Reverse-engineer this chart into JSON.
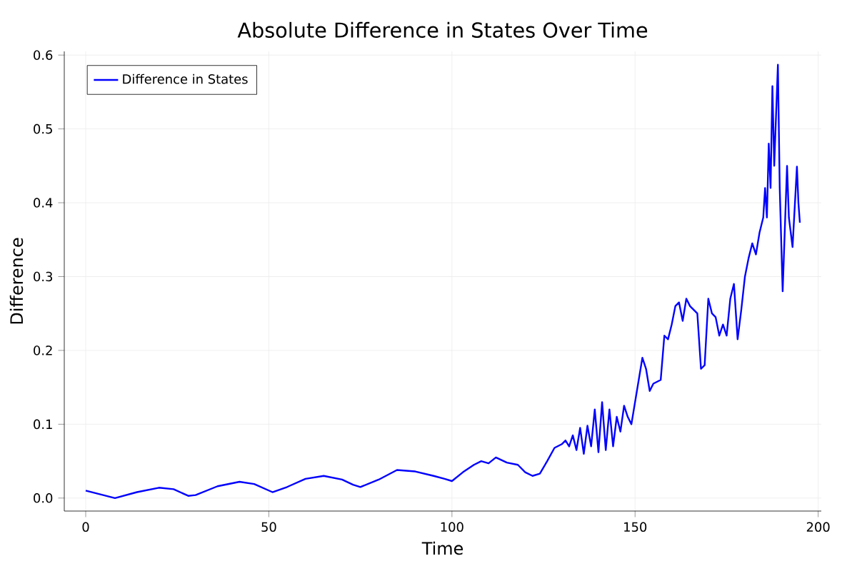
{
  "chart_data": {
    "type": "line",
    "title": "Absolute Difference in States Over Time",
    "xlabel": "Time",
    "ylabel": "Difference",
    "xlim": [
      -5.85,
      200.85
    ],
    "ylim": [
      -0.0176,
      0.605
    ],
    "xticks": [
      0,
      50,
      100,
      150,
      200
    ],
    "yticks": [
      {
        "value": 0,
        "label": "0.0"
      },
      0.1,
      0.2,
      0.3,
      0.4,
      0.5,
      0.6
    ],
    "grid": true,
    "legend": "top left",
    "line_style": "solid",
    "marker": "none",
    "series": [
      {
        "name": "Difference in States",
        "color": "#0000ff",
        "x": [
          0,
          8,
          14,
          20,
          24,
          28,
          30,
          36,
          42,
          46,
          51,
          55,
          60,
          65,
          70,
          73,
          75,
          80,
          85,
          90,
          95,
          98,
          100,
          103,
          106,
          108,
          110,
          112,
          115,
          118,
          120,
          122,
          124,
          126,
          128,
          130,
          131,
          132,
          133,
          134,
          135,
          136,
          137,
          138,
          139,
          140,
          141,
          142,
          143,
          144,
          145,
          146,
          147,
          148,
          149,
          151,
          152,
          153,
          154,
          155,
          157,
          158,
          159,
          160,
          161,
          162,
          163,
          164,
          165,
          167,
          168,
          169,
          170,
          171,
          172,
          173,
          174,
          175,
          176,
          177,
          178,
          179,
          180,
          181,
          182,
          183,
          184,
          185,
          185.5,
          186,
          186.5,
          187,
          187.5,
          188,
          189,
          189.5,
          190.3,
          191,
          191.5,
          192,
          193,
          194.2,
          194.6,
          195
        ],
        "values": [
          0.01,
          0.0,
          0.008,
          0.014,
          0.012,
          0.003,
          0.004,
          0.016,
          0.022,
          0.019,
          0.008,
          0.015,
          0.026,
          0.03,
          0.025,
          0.018,
          0.015,
          0.025,
          0.038,
          0.036,
          0.03,
          0.026,
          0.023,
          0.035,
          0.045,
          0.05,
          0.047,
          0.055,
          0.048,
          0.045,
          0.035,
          0.03,
          0.033,
          0.05,
          0.068,
          0.073,
          0.078,
          0.07,
          0.085,
          0.065,
          0.095,
          0.06,
          0.098,
          0.07,
          0.12,
          0.062,
          0.13,
          0.065,
          0.12,
          0.07,
          0.11,
          0.09,
          0.125,
          0.11,
          0.1,
          0.16,
          0.19,
          0.175,
          0.145,
          0.155,
          0.16,
          0.22,
          0.215,
          0.235,
          0.26,
          0.265,
          0.24,
          0.27,
          0.26,
          0.25,
          0.175,
          0.18,
          0.27,
          0.25,
          0.245,
          0.22,
          0.235,
          0.22,
          0.27,
          0.29,
          0.215,
          0.255,
          0.3,
          0.325,
          0.345,
          0.33,
          0.36,
          0.38,
          0.42,
          0.38,
          0.48,
          0.42,
          0.558,
          0.45,
          0.587,
          0.42,
          0.28,
          0.38,
          0.45,
          0.38,
          0.34,
          0.449,
          0.4,
          0.373
        ]
      }
    ]
  }
}
